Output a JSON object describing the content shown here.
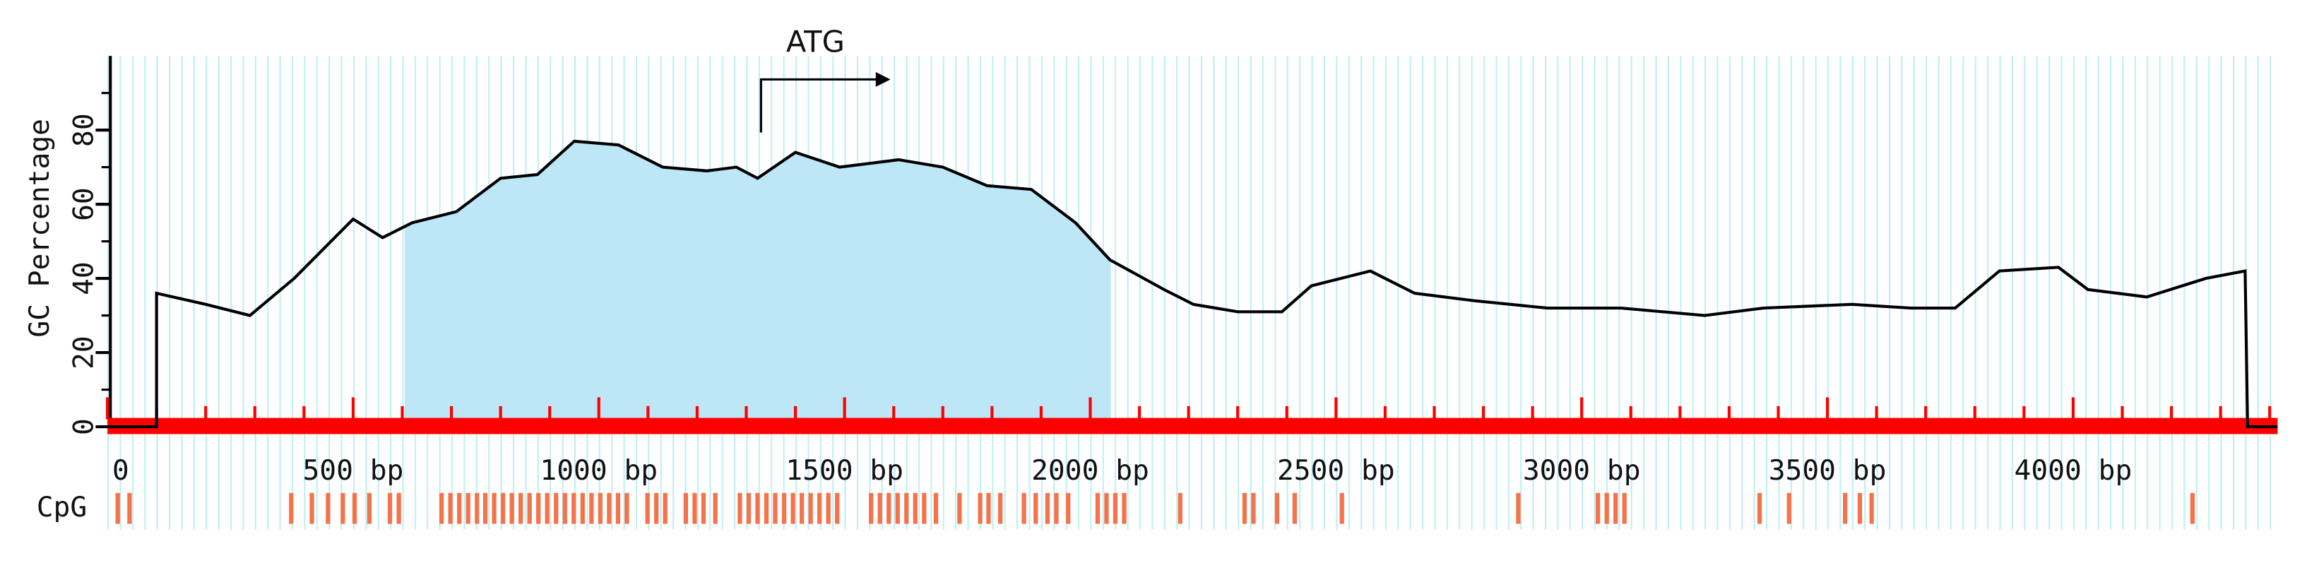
{
  "chart_data": {
    "type": "line",
    "ylabel": "GC Percentage",
    "ylim": [
      0,
      100
    ],
    "yticks": [
      0,
      20,
      40,
      60,
      80
    ],
    "yminor_ticks": [
      10,
      30,
      50,
      70,
      90
    ],
    "xlim": [
      0,
      4416
    ],
    "xticks": [
      0,
      {
        "value": 500,
        "label": "500 bp"
      },
      {
        "value": 1000,
        "label": "1000 bp"
      },
      {
        "value": 1500,
        "label": "1500 bp"
      },
      {
        "value": 2000,
        "label": "2000 bp"
      },
      {
        "value": 2500,
        "label": "2500 bp"
      },
      {
        "value": 3000,
        "label": "3000 bp"
      },
      {
        "value": 3500,
        "label": "3500 bp"
      },
      {
        "value": 4000,
        "label": "4000 bp"
      }
    ],
    "xminor_ticks": [
      100,
      200,
      300,
      400,
      600,
      700,
      800,
      900,
      1100,
      1200,
      1300,
      1400,
      1600,
      1700,
      1800,
      1900,
      2100,
      2200,
      2300,
      2400,
      2600,
      2700,
      2800,
      2900,
      3100,
      3200,
      3300,
      3400,
      3600,
      3700,
      3800,
      3900,
      4100,
      4200,
      4300,
      4400
    ],
    "x": [
      0,
      100,
      100,
      200,
      290,
      380,
      500,
      560,
      620,
      710,
      800,
      875,
      950,
      1040,
      1130,
      1220,
      1280,
      1323,
      1400,
      1490,
      1610,
      1700,
      1790,
      1880,
      1970,
      2040,
      2150,
      2210,
      2300,
      2390,
      2450,
      2570,
      2660,
      2780,
      2930,
      3080,
      3250,
      3370,
      3550,
      3670,
      3760,
      3850,
      3970,
      4030,
      4150,
      4270,
      4350,
      4355,
      4416
    ],
    "values": [
      0,
      0,
      36,
      33,
      30,
      40,
      56,
      51,
      55,
      58,
      67,
      68,
      77,
      76,
      70,
      69,
      70,
      67,
      74,
      70,
      72,
      70,
      65,
      64,
      55,
      45,
      37,
      33,
      31,
      31,
      38,
      42,
      36,
      34,
      32,
      32,
      30,
      32,
      33,
      32,
      32,
      42,
      43,
      37,
      35,
      40,
      42,
      0,
      0
    ],
    "color": "#000000",
    "highlight_range": [
      605,
      2042
    ],
    "highlight_color": "#bde6f7",
    "axis_color": "#ff0000",
    "annotation": {
      "text": "ATG",
      "x": 1330
    },
    "cpg_label": "CpG",
    "cpg_color": "#f4734a",
    "cpg_sites": [
      21,
      45,
      374,
      416,
      449,
      479,
      503,
      533,
      575,
      593,
      680,
      698,
      716,
      734,
      752,
      769,
      787,
      805,
      823,
      841,
      859,
      877,
      895,
      913,
      931,
      949,
      967,
      985,
      1003,
      1021,
      1039,
      1057,
      1099,
      1117,
      1135,
      1177,
      1195,
      1213,
      1237,
      1287,
      1305,
      1323,
      1341,
      1359,
      1377,
      1395,
      1413,
      1431,
      1449,
      1467,
      1485,
      1554,
      1572,
      1590,
      1608,
      1626,
      1644,
      1662,
      1686,
      1734,
      1776,
      1793,
      1817,
      1865,
      1889,
      1913,
      1931,
      1955,
      2015,
      2033,
      2051,
      2069,
      2183,
      2314,
      2332,
      2380,
      2416,
      2512,
      2871,
      3033,
      3051,
      3069,
      3087,
      3362,
      3422,
      3536,
      3566,
      3590,
      4243
    ]
  }
}
